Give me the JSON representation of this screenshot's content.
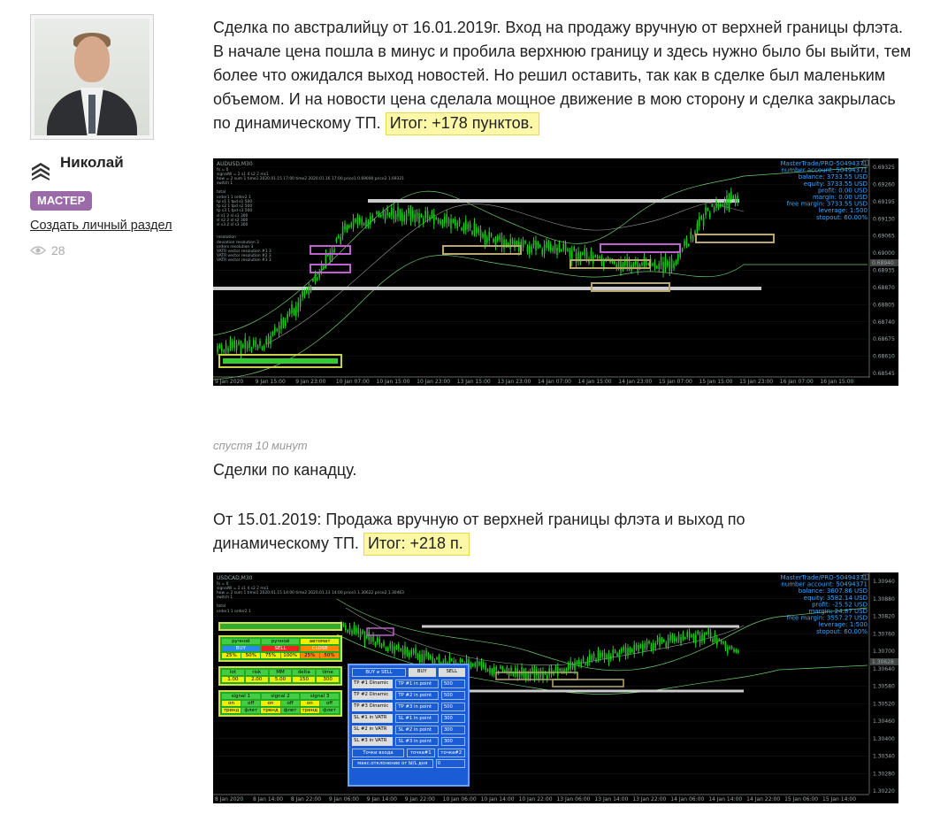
{
  "author": {
    "name": "Николай",
    "badge": "МАСТЕР",
    "create_link": "Создать личный раздел",
    "views": "28"
  },
  "post1": {
    "text": "Сделка по австралийцу от 16.01.2019г. Вход на продажу вручную от верхней границы флэта. В начале цена пошла в минус и пробила верхнюю границу и здесь нужно было бы выйти, тем более что ожидался выход новостей. Но решил оставить, так как в сделке был маленьким объемом. И на новости цена сделала мощное движение в мою сторону и сделка закрылась по динамическому ТП.",
    "result": "Итог: +178 пунктов."
  },
  "chart1": {
    "symbol": "AUDUSD,M30",
    "info_lines": [
      "MasterTrade/PRO-50494371",
      "number account: 50494371",
      "balance: 3733.55 USD",
      "equity: 3733.55 USD",
      "profit: 0.00 USD",
      "margin: 0.00 USD",
      "free margin: 3733.55 USD",
      "leverage: 1:500",
      "stopout: 60.00%"
    ],
    "price_labels": [
      "0.69325",
      "0.69260",
      "0.69195",
      "0.69130",
      "0.69065",
      "0.69000",
      "0.68935",
      "0.68870",
      "0.68805",
      "0.68740",
      "0.68675",
      "0.68610",
      "0.68545"
    ],
    "current_price": "0.68940",
    "time_labels": [
      "9 Jan 2020",
      "9 Jan 15:00",
      "9 Jan 23:00",
      "10 Jan 07:00",
      "10 Jan 15:00",
      "10 Jan 23:00",
      "13 Jan 15:00",
      "13 Jan 23:00",
      "14 Jan 07:00",
      "14 Jan 15:00",
      "14 Jan 23:00",
      "15 Jan 07:00",
      "15 Jan 15:00",
      "15 Jan 23:00",
      "16 Jan 07:00",
      "16 Jan 15:00"
    ]
  },
  "post2": {
    "time": "спустя 10 минут",
    "text1": "Сделки по канадцу.",
    "text2": "От 15.01.2019: Продажа вручную от верхней границы флэта и выход по динамическому ТП.",
    "result": "Итог: +218 п."
  },
  "chart2": {
    "symbol": "USDCAD,M30",
    "info_lines": [
      "MasterTrade/PRO-50494371",
      "number account: 50494371",
      "balance: 3607.86 USD",
      "equity: 3582.14 USD",
      "profit: -25.52 USD",
      "margin: 24.87 USD",
      "free margin: 3557.27 USD",
      "leverage: 1:500",
      "stopout: 60.00%"
    ],
    "price_labels": [
      "1.30940",
      "1.30880",
      "1.30820",
      "1.30760",
      "1.30700",
      "1.30640",
      "1.30580",
      "1.30520",
      "1.30460",
      "1.30400",
      "1.30340",
      "1.30280",
      "1.30220"
    ],
    "current_price": "1.30628",
    "time_labels": [
      "8 Jan 2020",
      "8 Jan 14:00",
      "8 Jan 22:00",
      "9 Jan 06:00",
      "9 Jan 14:00",
      "9 Jan 22:00",
      "10 Jan 06:00",
      "10 Jan 14:00",
      "10 Jan 22:00",
      "13 Jan 06:00",
      "13 Jan 14:00",
      "13 Jan 22:00",
      "14 Jan 06:00",
      "14 Jan 14:00",
      "14 Jan 22:00",
      "15 Jan 06:00",
      "15 Jan 14:00"
    ],
    "panel": {
      "modes": [
        "ручной",
        "ручной",
        "автомат"
      ],
      "buy": "BUY",
      "sell": "SELL",
      "close": "CLOSE",
      "percents": [
        "25%",
        "50%",
        "75%",
        "100%",
        "25%",
        "50%"
      ],
      "params_head": [
        "lot",
        "risk",
        "MM",
        "delta",
        "time"
      ],
      "params_val": [
        "1.00",
        "2.00",
        "5.00",
        "150",
        "300"
      ],
      "signals": [
        "signal 1",
        "signal 2",
        "signal 3"
      ],
      "onoff": [
        "on",
        "off",
        "on",
        "off",
        "on",
        "off"
      ],
      "trend": [
        "тренд",
        "флет",
        "тренд",
        "флет",
        "тренд",
        "флет"
      ]
    },
    "dialog": {
      "buy_sell": "BUY и SELL",
      "buy": "BUY",
      "sell": "SELL",
      "rows": [
        [
          "TP #1 Dinamic",
          "TP #1 in point",
          "500"
        ],
        [
          "TP #2 Dinamic",
          "TP #2 in point",
          "500"
        ],
        [
          "TP #3 Dinamic",
          "TP #3 in point",
          "500"
        ],
        [
          "SL #1 in VATR",
          "SL #1 in point",
          "300"
        ],
        [
          "SL #2 in VATR",
          "SL #2 in point",
          "300"
        ],
        [
          "SL #3 in VATR",
          "SL #3 in point",
          "300"
        ]
      ],
      "entry_points": "Точки входа",
      "point1": "точка#1",
      "point2": "точка#2",
      "max_dev": "макс.отклонение от Ы/L дня",
      "max_dev_val": "0"
    }
  }
}
